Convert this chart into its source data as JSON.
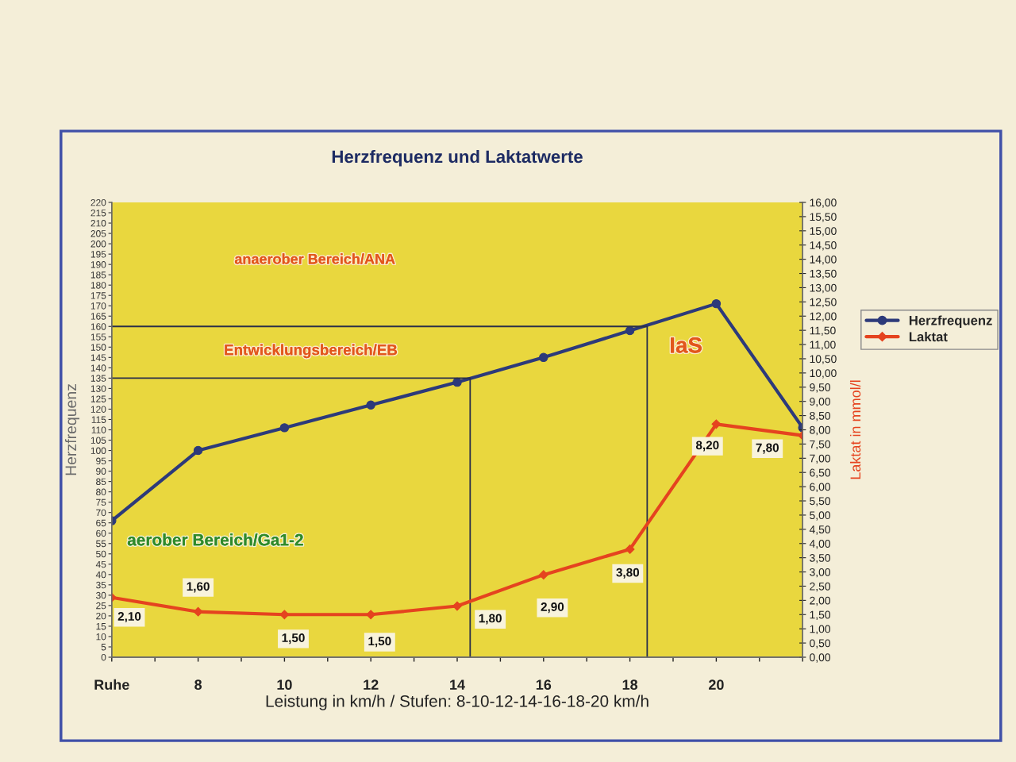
{
  "chart_data": {
    "type": "line",
    "title": "Herzfrequenz und Laktatwerte",
    "xlabel": "Leistung in km/h / Stufen: 8-10-12-14-16-18-20 km/h",
    "ylabel": "Herzfrequenz",
    "y2label": "Laktat in mmol/l",
    "x": [
      6,
      8,
      10,
      12,
      14,
      16,
      18,
      20,
      22
    ],
    "xlim": [
      6,
      22
    ],
    "xticks": [
      {
        "value": 6,
        "label": "Ruhe"
      },
      {
        "value": 7,
        "label": null
      },
      8,
      {
        "value": 9,
        "label": null
      },
      10,
      {
        "value": 11,
        "label": null
      },
      12,
      {
        "value": 13,
        "label": null
      },
      14,
      {
        "value": 15,
        "label": null
      },
      16,
      {
        "value": 17,
        "label": null
      },
      18,
      {
        "value": 19,
        "label": null
      },
      20,
      {
        "value": 21,
        "label": null
      },
      {
        "value": 22,
        "label": null
      }
    ],
    "ylim": [
      0,
      220
    ],
    "yticks": [
      0,
      5,
      10,
      15,
      20,
      25,
      30,
      35,
      40,
      45,
      50,
      55,
      60,
      65,
      70,
      75,
      80,
      85,
      90,
      95,
      100,
      105,
      110,
      115,
      120,
      125,
      130,
      135,
      140,
      145,
      150,
      155,
      160,
      165,
      170,
      175,
      180,
      185,
      190,
      195,
      200,
      205,
      210,
      215,
      220
    ],
    "y2lim": [
      0,
      16
    ],
    "y2ticks": [
      {
        "value": 0,
        "label": "0,00"
      },
      {
        "value": 0.5,
        "label": "0,50"
      },
      {
        "value": 1,
        "label": "1,00"
      },
      {
        "value": 1.5,
        "label": "1,50"
      },
      {
        "value": 2,
        "label": "2,00"
      },
      {
        "value": 2.5,
        "label": "2,50"
      },
      {
        "value": 3,
        "label": "3,00"
      },
      {
        "value": 3.5,
        "label": "3,50"
      },
      {
        "value": 4,
        "label": "4,00"
      },
      {
        "value": 4.5,
        "label": "4,50"
      },
      {
        "value": 5,
        "label": "5,00"
      },
      {
        "value": 5.5,
        "label": "5,50"
      },
      {
        "value": 6,
        "label": "6,00"
      },
      {
        "value": 6.5,
        "label": "6,50"
      },
      {
        "value": 7,
        "label": "7,00"
      },
      {
        "value": 7.5,
        "label": "7,50"
      },
      {
        "value": 8,
        "label": "8,00"
      },
      {
        "value": 8.5,
        "label": "8,50"
      },
      {
        "value": 9,
        "label": "9,00"
      },
      {
        "value": 9.5,
        "label": "9,50"
      },
      {
        "value": 10,
        "label": "10,00"
      },
      {
        "value": 10.5,
        "label": "10,50"
      },
      {
        "value": 11,
        "label": "11,00"
      },
      {
        "value": 11.5,
        "label": "11,50"
      },
      {
        "value": 12,
        "label": "12,00"
      },
      {
        "value": 12.5,
        "label": "12,50"
      },
      {
        "value": 13,
        "label": "13,00"
      },
      {
        "value": 13.5,
        "label": "13,50"
      },
      {
        "value": 14,
        "label": "14,00"
      },
      {
        "value": 14.5,
        "label": "14,50"
      },
      {
        "value": 15,
        "label": "15,00"
      },
      {
        "value": 15.5,
        "label": "15,50"
      },
      {
        "value": 16,
        "label": "16,00"
      }
    ],
    "series": [
      {
        "name": "Herzfrequenz",
        "color": "#2d3a7a",
        "marker": "circle",
        "values": [
          66,
          100,
          111,
          122,
          133,
          145,
          158,
          171,
          111
        ]
      },
      {
        "name": "Laktat",
        "color": "#e5431f",
        "marker": "diamond",
        "axis": "y2",
        "values": [
          2.1,
          1.6,
          1.5,
          1.5,
          1.8,
          2.9,
          3.8,
          8.2,
          7.8
        ],
        "value_labels": [
          "2,10",
          "1,60",
          "1,50",
          "1,50",
          "1,80",
          "2,90",
          "3,80",
          "8,20",
          "7,80"
        ]
      },
      {
        "color": "#2a2f4a",
        "marker": "none",
        "x": [
          6,
          14.3,
          14.3
        ],
        "values": [
          135,
          135,
          0
        ]
      },
      {
        "color": "#2a2f4a",
        "marker": "none",
        "x": [
          6,
          18.4,
          18.4
        ],
        "values": [
          160,
          160,
          0
        ]
      }
    ],
    "annotations": [
      "anaerober Bereich/ANA",
      "Entwicklungsbereich/EB",
      "IaS",
      "aerober Bereich/Ga1-2"
    ],
    "legend": "right"
  }
}
